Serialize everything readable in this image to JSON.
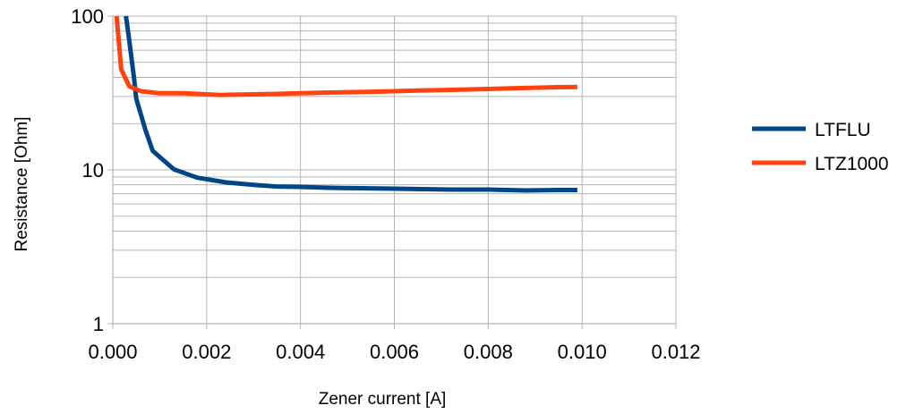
{
  "chart_data": {
    "type": "line",
    "title": "",
    "xlabel": "Zener current [A]",
    "ylabel": "Resistance [Ohm]",
    "xlim": [
      0,
      0.012
    ],
    "ylim": [
      1,
      100
    ],
    "y_scale": "log",
    "x_ticks": [
      0,
      0.002,
      0.004,
      0.006,
      0.008,
      0.01,
      0.012
    ],
    "x_tick_labels": [
      "0.000",
      "0.002",
      "0.004",
      "0.006",
      "0.008",
      "0.010",
      "0.012"
    ],
    "y_ticks": [
      1,
      10,
      100
    ],
    "y_tick_labels": [
      "1",
      "10",
      "100"
    ],
    "grid": true,
    "legend": "right",
    "series": [
      {
        "name": "LTFLU",
        "color": "#004586",
        "points": [
          [
            0.00028,
            100
          ],
          [
            0.00035,
            70
          ],
          [
            0.00045,
            40
          ],
          [
            0.0005,
            29
          ],
          [
            0.0007,
            18
          ],
          [
            0.00085,
            13.3
          ],
          [
            0.0013,
            10.1
          ],
          [
            0.0018,
            8.9
          ],
          [
            0.0024,
            8.3
          ],
          [
            0.003,
            8.0
          ],
          [
            0.0035,
            7.8
          ],
          [
            0.004,
            7.75
          ],
          [
            0.0046,
            7.65
          ],
          [
            0.0053,
            7.6
          ],
          [
            0.006,
            7.55
          ],
          [
            0.0066,
            7.5
          ],
          [
            0.0072,
            7.45
          ],
          [
            0.008,
            7.45
          ],
          [
            0.0088,
            7.35
          ],
          [
            0.0095,
            7.4
          ],
          [
            0.0099,
            7.4
          ]
        ]
      },
      {
        "name": "LTZ1000",
        "color": "#ff420e",
        "points": [
          [
            8e-05,
            100
          ],
          [
            0.00018,
            45
          ],
          [
            0.00035,
            35
          ],
          [
            0.0006,
            32.5
          ],
          [
            0.001,
            31.5
          ],
          [
            0.0015,
            31.5
          ],
          [
            0.002,
            31
          ],
          [
            0.0023,
            30.7
          ],
          [
            0.003,
            31
          ],
          [
            0.0035,
            31.2
          ],
          [
            0.004,
            31.5
          ],
          [
            0.0045,
            31.8
          ],
          [
            0.005,
            32
          ],
          [
            0.0055,
            32.2
          ],
          [
            0.006,
            32.5
          ],
          [
            0.0065,
            32.8
          ],
          [
            0.007,
            33
          ],
          [
            0.0075,
            33.3
          ],
          [
            0.008,
            33.6
          ],
          [
            0.0085,
            33.9
          ],
          [
            0.009,
            34.2
          ],
          [
            0.0095,
            34.5
          ],
          [
            0.0099,
            34.6
          ]
        ]
      }
    ]
  }
}
